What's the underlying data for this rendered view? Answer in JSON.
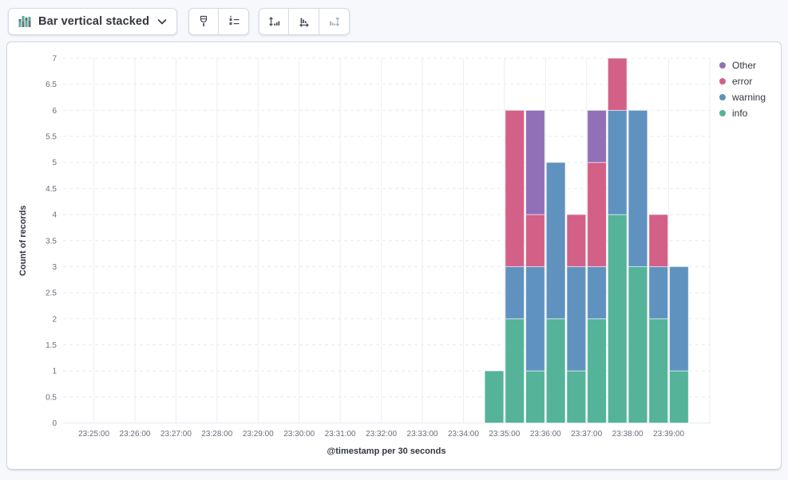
{
  "toolbar": {
    "chart_type_button": {
      "label": "Bar vertical stacked",
      "icon": "bar-vertical-stacked-icon",
      "chevron": "chevron-down-icon"
    },
    "style_group": [
      {
        "icon": "brush-icon",
        "enabled": true
      },
      {
        "icon": "legend-icon",
        "enabled": true
      }
    ],
    "axis_group": [
      {
        "icon": "axis-left-icon",
        "enabled": true
      },
      {
        "icon": "axis-bottom-icon",
        "enabled": true
      },
      {
        "icon": "axis-right-icon",
        "enabled": false
      }
    ]
  },
  "chart_data": {
    "type": "bar",
    "stacked": true,
    "orientation": "vertical",
    "xlabel": "@timestamp per 30 seconds",
    "ylabel": "Count of records",
    "ylim": [
      0,
      7
    ],
    "ytick_step": 0.5,
    "x_domain": [
      "23:24:15",
      "23:40:00"
    ],
    "bar_interval_seconds": 30,
    "x_axis_labels": [
      "23:25:00",
      "23:26:00",
      "23:27:00",
      "23:28:00",
      "23:29:00",
      "23:30:00",
      "23:31:00",
      "23:32:00",
      "23:33:00",
      "23:34:00",
      "23:35:00",
      "23:36:00",
      "23:37:00",
      "23:38:00",
      "23:39:00"
    ],
    "x_gridlines_extra": [
      "23:40:00"
    ],
    "x": [
      "23:34:30",
      "23:35:00",
      "23:35:30",
      "23:36:00",
      "23:36:30",
      "23:37:00",
      "23:37:30",
      "23:38:00",
      "23:38:30",
      "23:39:00"
    ],
    "series": [
      {
        "name": "info",
        "color": "#54B399",
        "values": [
          1,
          2,
          1,
          2,
          1,
          2,
          4,
          3,
          2,
          1
        ]
      },
      {
        "name": "warning",
        "color": "#6092C0",
        "values": [
          0,
          1,
          2,
          3,
          2,
          1,
          2,
          3,
          1,
          2
        ]
      },
      {
        "name": "error",
        "color": "#D36086",
        "values": [
          0,
          3,
          1,
          0,
          1,
          2,
          1,
          0,
          1,
          0
        ]
      },
      {
        "name": "Other",
        "color": "#9170B8",
        "values": [
          0,
          0,
          2,
          0,
          0,
          1,
          0,
          0,
          0,
          0
        ]
      }
    ],
    "legend": {
      "position": "right",
      "items": [
        "Other",
        "error",
        "warning",
        "info"
      ]
    },
    "grid": {
      "horizontal": "dashed",
      "vertical": "solid"
    },
    "colors": {
      "grid_vertical": "#eceef3",
      "grid_horizontal": "#e7eaf1",
      "tick_label": "#696f7d",
      "axis_title": "#343741"
    }
  }
}
